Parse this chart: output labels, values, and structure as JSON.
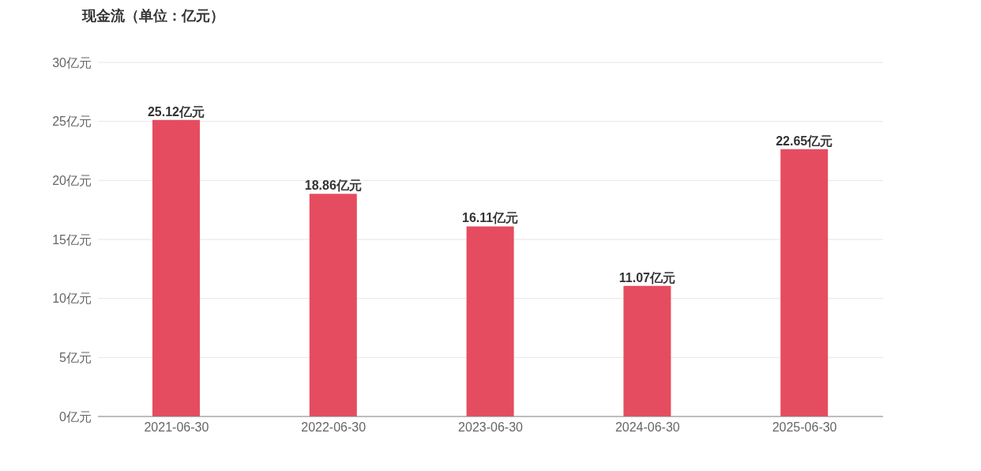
{
  "chart_data": {
    "type": "bar",
    "title": "现金流（单位：亿元）",
    "categories": [
      "2021-06-30",
      "2022-06-30",
      "2023-06-30",
      "2024-06-30",
      "2025-06-30"
    ],
    "values": [
      25.12,
      18.86,
      16.11,
      11.07,
      22.65
    ],
    "value_labels": [
      "25.12亿元",
      "18.86亿元",
      "16.11亿元",
      "11.07亿元",
      "22.65亿元"
    ],
    "color": "#e64c5f",
    "ylim": [
      0,
      30
    ],
    "yticks": [
      {
        "value": 0,
        "label": "0亿元"
      },
      {
        "value": 5,
        "label": "5亿元"
      },
      {
        "value": 10,
        "label": "10亿元"
      },
      {
        "value": 15,
        "label": "15亿元"
      },
      {
        "value": 20,
        "label": "20亿元"
      },
      {
        "value": 25,
        "label": "25亿元"
      },
      {
        "value": 30,
        "label": "30亿元"
      }
    ],
    "grid": "y",
    "legend": false
  }
}
